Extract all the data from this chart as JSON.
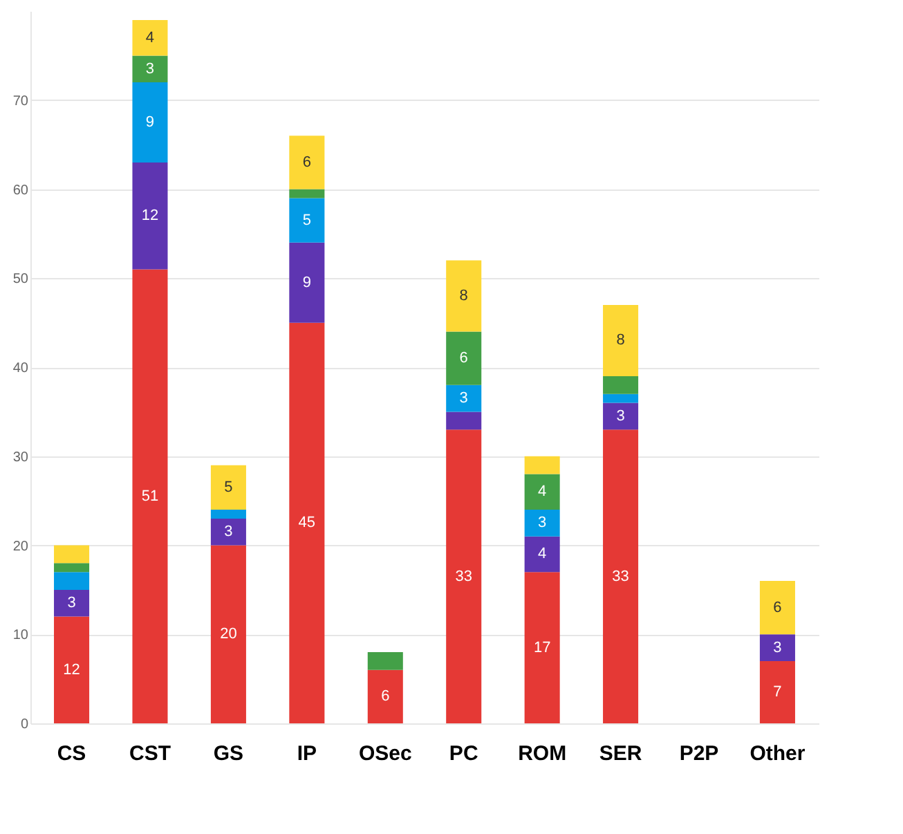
{
  "chart_data": {
    "type": "bar",
    "stacked": true,
    "categories": [
      "CS",
      "CST",
      "GS",
      "IP",
      "OSec",
      "PC",
      "ROM",
      "SER",
      "P2P",
      "Other"
    ],
    "series": [
      {
        "color": "#e53935",
        "values": [
          12,
          51,
          20,
          45,
          6,
          33,
          17,
          33,
          0,
          7
        ],
        "value_labels": [
          "12",
          "51",
          "20",
          "45",
          "6",
          "33",
          "17",
          "33",
          null,
          "7"
        ]
      },
      {
        "color": "#5e35b1",
        "values": [
          3,
          12,
          3,
          9,
          0,
          2,
          4,
          3,
          0,
          3
        ],
        "value_labels": [
          "3",
          "12",
          "3",
          "9",
          null,
          null,
          "4",
          "3",
          null,
          "3"
        ]
      },
      {
        "color": "#039be5",
        "values": [
          2,
          9,
          1,
          5,
          0,
          3,
          3,
          1,
          0,
          0
        ],
        "value_labels": [
          null,
          "9",
          null,
          "5",
          null,
          "3",
          "3",
          null,
          null,
          null
        ]
      },
      {
        "color": "#43a047",
        "values": [
          1,
          3,
          0,
          1,
          2,
          6,
          4,
          2,
          0,
          0
        ],
        "value_labels": [
          null,
          "3",
          null,
          null,
          null,
          "6",
          "4",
          null,
          null,
          null
        ]
      },
      {
        "color": "#fdd835",
        "values": [
          2,
          4,
          5,
          6,
          0,
          8,
          2,
          8,
          0,
          6
        ],
        "value_labels": [
          null,
          "4",
          "5",
          "6",
          null,
          "8",
          null,
          "8",
          null,
          "6"
        ]
      }
    ],
    "ylim": [
      0,
      80
    ],
    "yticks": [
      0,
      10,
      20,
      30,
      40,
      50,
      60,
      70
    ],
    "grid": "y"
  }
}
